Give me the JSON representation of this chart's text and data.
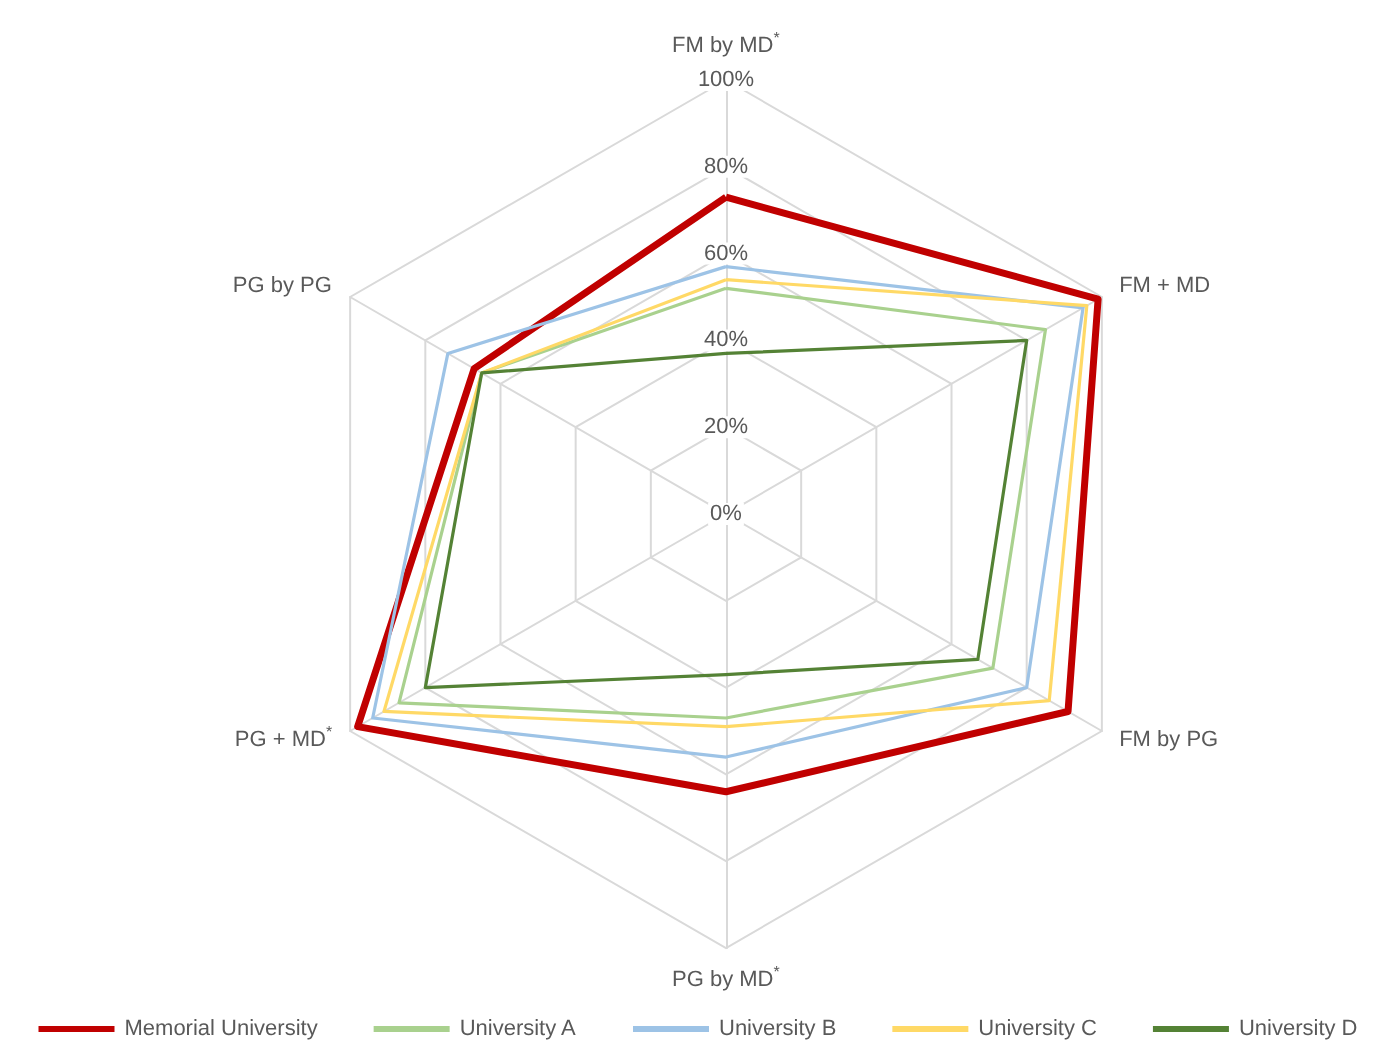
{
  "chart_data": {
    "type": "radar",
    "categories": [
      "FM by MD$^{*}$",
      "FM + MD",
      "FM by PG",
      "PG by MD$^{*}$",
      "PG + MD$^{*}$",
      "PG by PG"
    ],
    "series": [
      {
        "name": "Memorial University",
        "color": "#c00000",
        "values": [
          73,
          99,
          91,
          64,
          98,
          67
        ]
      },
      {
        "name": "University A",
        "color": "#a9d18e",
        "values": [
          52,
          85,
          71,
          47,
          87,
          65
        ]
      },
      {
        "name": "University B",
        "color": "#9dc3e6",
        "values": [
          57,
          95,
          80,
          56,
          94,
          74
        ]
      },
      {
        "name": "University C",
        "color": "#ffd966",
        "values": [
          54,
          96,
          86,
          49,
          91,
          65
        ]
      },
      {
        "name": "University D",
        "color": "#548235",
        "values": [
          37,
          80,
          67,
          37,
          80,
          65
        ]
      }
    ],
    "ylim": [
      0,
      100
    ],
    "yticks": [
      {
        "value": 0,
        "label": "0%"
      },
      {
        "value": 20,
        "label": "20%"
      },
      {
        "value": 40,
        "label": "40%"
      },
      {
        "value": 60,
        "label": "60%"
      },
      {
        "value": 80,
        "label": "80%"
      },
      {
        "value": 100,
        "label": "100%"
      }
    ],
    "legend": "bottom",
    "marker": "none",
    "grid": true
  }
}
